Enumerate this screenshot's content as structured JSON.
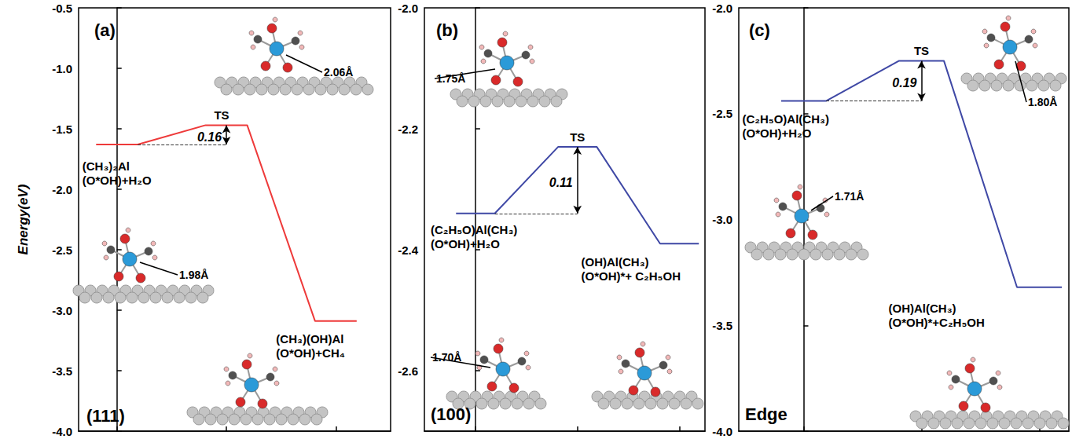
{
  "chart_data": [
    {
      "type": "line",
      "title": "(a)",
      "subtitle": "(111)",
      "ylabel": "Energy(eV)",
      "x": [
        0,
        1,
        2
      ],
      "values": [
        -1.63,
        -1.47,
        -3.09
      ],
      "labels": [
        "(CH₃)₂Al\n(O*OH)+H₂O",
        "TS",
        "(CH₃)(OH)Al\n(O*OH)+CH₄"
      ],
      "barrier": 0.16,
      "color": "#ee3a3a",
      "xlim": [
        -0.35,
        2.5
      ],
      "xticks": [
        0,
        1,
        2
      ],
      "ylim": [
        -4,
        -0.5
      ],
      "yticks": [
        {
          "value": -4,
          "label": "-4.0"
        },
        -3.5,
        {
          "value": -3,
          "label": "-3.0"
        },
        -2.5,
        {
          "value": -2,
          "label": "-2.0"
        },
        -1.5,
        {
          "value": -1,
          "label": "-1.0"
        },
        -0.5
      ],
      "tick_labels": "y",
      "grid": false,
      "annotations": [
        "2.06Å",
        "1.98Å"
      ]
    },
    {
      "type": "line",
      "title": "(b)",
      "subtitle": "(100)",
      "x": [
        0,
        1,
        2
      ],
      "values": [
        -2.34,
        -2.23,
        -2.39
      ],
      "labels": [
        "(C₂H₅O)Al(CH₃)\n(O*OH)+H₂O",
        "TS",
        "(OH)Al(CH₃)\n(O*OH)*+ C₂H₅OH"
      ],
      "barrier": 0.11,
      "color": "#3f48a5",
      "xlim": [
        -0.5,
        2.25
      ],
      "xticks": [
        0,
        1,
        2
      ],
      "ylim": [
        -2.7,
        -2
      ],
      "yticks": [
        -2.6,
        -2.4,
        -2.2,
        {
          "value": -2,
          "label": "-2.0"
        }
      ],
      "tick_labels": "y",
      "grid": false,
      "annotations": [
        "1.75Å",
        "1.70Å"
      ]
    },
    {
      "type": "line",
      "title": "(c)",
      "subtitle": "Edge",
      "x": [
        0,
        1,
        2
      ],
      "values": [
        -2.44,
        -2.25,
        -3.32
      ],
      "labels": [
        "(C₂H₅O)Al(CH₃)\n(O*OH)+H₂O",
        "TS",
        "(OH)Al(CH₃)\n(O*OH)*+C₂H₅OH"
      ],
      "barrier": 0.19,
      "color": "#3f48a5",
      "xlim": [
        -0.55,
        2.25
      ],
      "xticks": [
        0,
        1,
        2
      ],
      "ylim": [
        -4,
        -2
      ],
      "yticks": [
        {
          "value": -4,
          "label": "-4.0"
        },
        -3.5,
        {
          "value": -3,
          "label": "-3.0"
        },
        -2.5,
        {
          "value": -2,
          "label": "-2.0"
        }
      ],
      "tick_labels": "y",
      "grid": false,
      "annotations": [
        "1.80Å",
        "1.71Å"
      ]
    }
  ]
}
